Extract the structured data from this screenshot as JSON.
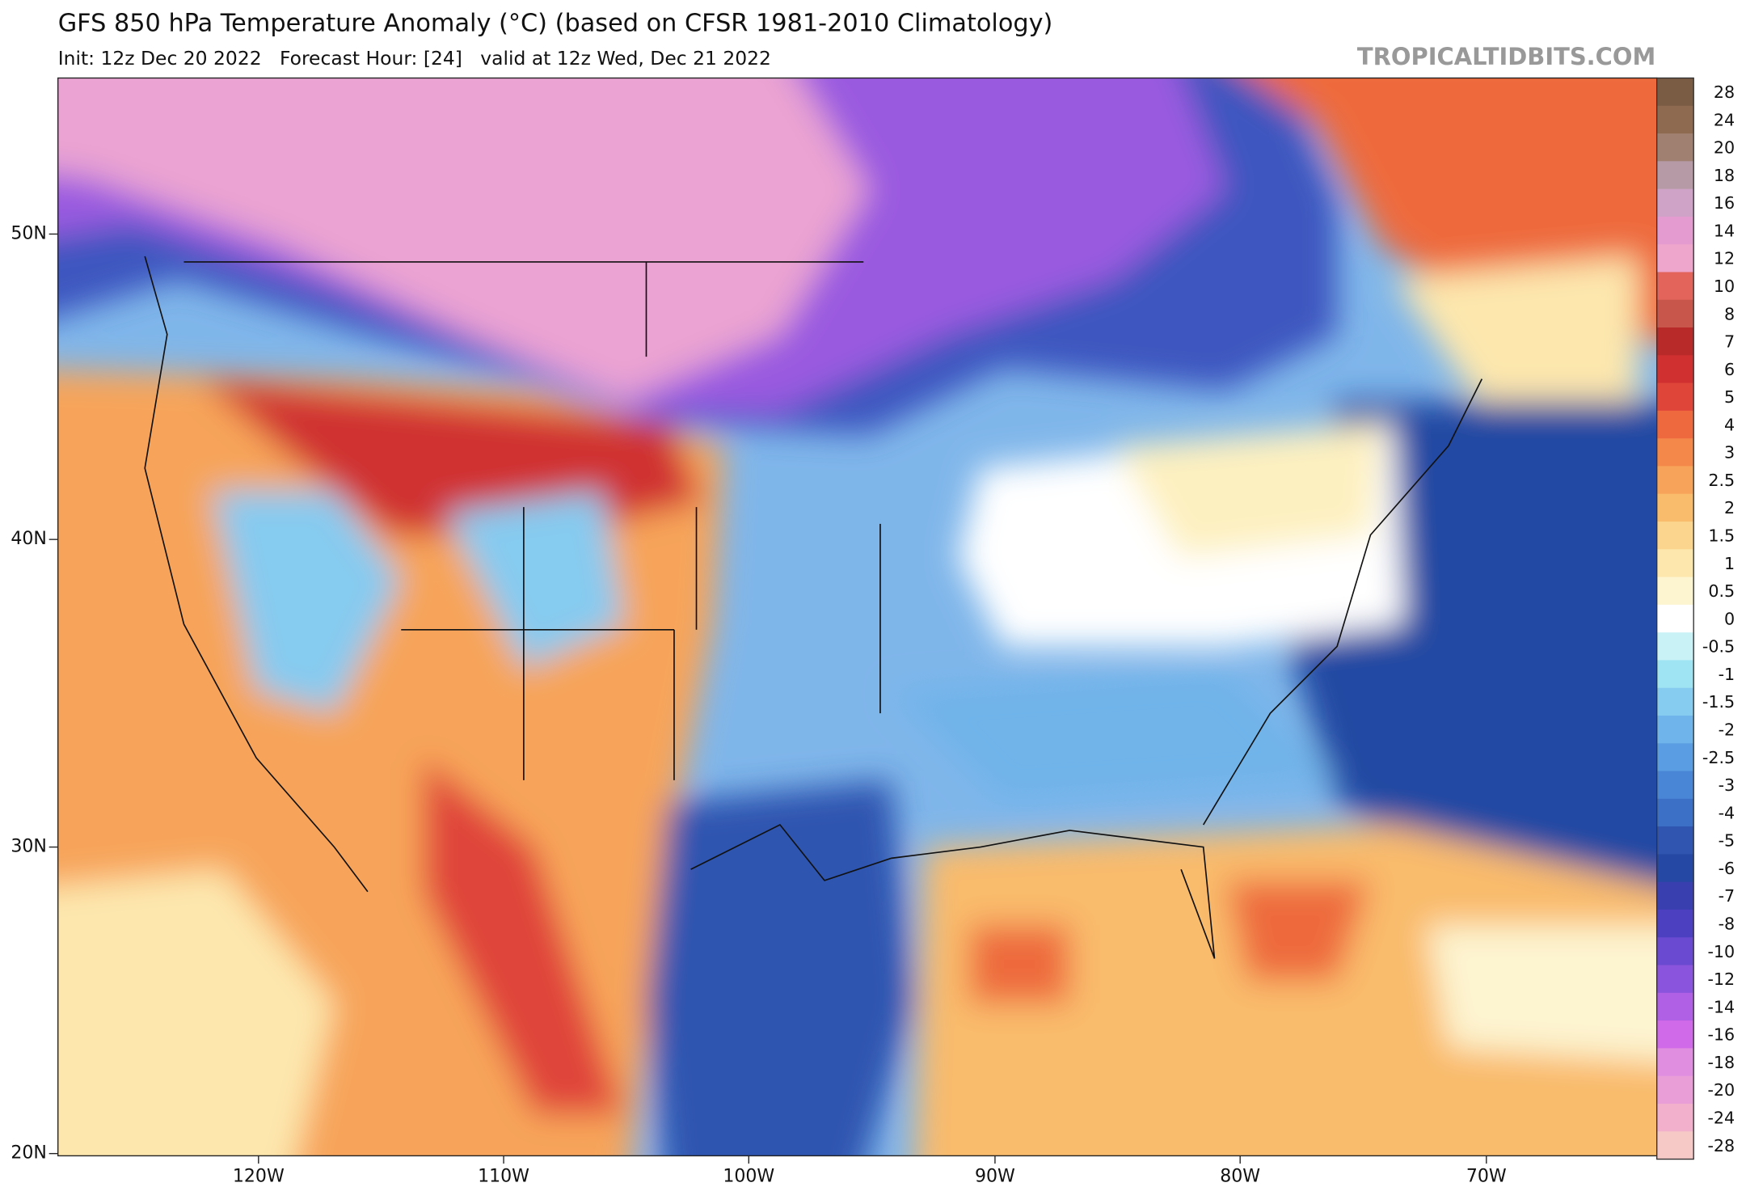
{
  "header": {
    "title": "GFS 850 hPa Temperature Anomaly (°C) (based on CFSR 1981-2010 Climatology)",
    "subtitle": "Init: 12z Dec 20 2022   Forecast Hour: [24]   valid at 12z Wed, Dec 21 2022",
    "watermark": "TROPICALTIDBITS.COM"
  },
  "map": {
    "lat_labels": [
      "50N",
      "40N",
      "30N",
      "20N"
    ],
    "lon_labels": [
      "120W",
      "110W",
      "100W",
      "90W",
      "80W",
      "70W"
    ]
  },
  "colorbar": [
    {
      "label": 28,
      "color": "#7a5c44"
    },
    {
      "label": 24,
      "color": "#8d6a50"
    },
    {
      "label": 20,
      "color": "#a08070"
    },
    {
      "label": 18,
      "color": "#b69aa6"
    },
    {
      "label": 16,
      "color": "#cfa3c7"
    },
    {
      "label": 14,
      "color": "#e39bd0"
    },
    {
      "label": 12,
      "color": "#eea6cc"
    },
    {
      "label": 10,
      "color": "#e2645a"
    },
    {
      "label": 8,
      "color": "#c9564a"
    },
    {
      "label": 7,
      "color": "#b82a2a"
    },
    {
      "label": 6,
      "color": "#d03030"
    },
    {
      "label": 5,
      "color": "#e0453a"
    },
    {
      "label": 4,
      "color": "#ee6a3e"
    },
    {
      "label": 3,
      "color": "#f4884a"
    },
    {
      "label": 2.5,
      "color": "#f7a45a"
    },
    {
      "label": 2,
      "color": "#f9bb6c"
    },
    {
      "label": 1.5,
      "color": "#fbd58d"
    },
    {
      "label": 1,
      "color": "#fde7ad"
    },
    {
      "label": 0.5,
      "color": "#fdf4d0"
    },
    {
      "label": 0,
      "color": "#ffffff"
    },
    {
      "label": -0.5,
      "color": "#c9f2f6"
    },
    {
      "label": -1,
      "color": "#9fe4f2"
    },
    {
      "label": -1.5,
      "color": "#86cbf0"
    },
    {
      "label": -2,
      "color": "#6fb4ea"
    },
    {
      "label": -2.5,
      "color": "#5a9de2"
    },
    {
      "label": -3,
      "color": "#4a86d6"
    },
    {
      "label": -4,
      "color": "#3c6fc6"
    },
    {
      "label": -5,
      "color": "#2f55b0"
    },
    {
      "label": -6,
      "color": "#2448a3"
    },
    {
      "label": -7,
      "color": "#3a3fb0"
    },
    {
      "label": -8,
      "color": "#4c3fc0"
    },
    {
      "label": -10,
      "color": "#6a4ad0"
    },
    {
      "label": -12,
      "color": "#8a55dc"
    },
    {
      "label": -14,
      "color": "#b060e4"
    },
    {
      "label": -16,
      "color": "#d06ae8"
    },
    {
      "label": -18,
      "color": "#e08fe0"
    },
    {
      "label": -20,
      "color": "#ea9ed8"
    },
    {
      "label": -24,
      "color": "#f2b0cc"
    },
    {
      "label": -28,
      "color": "#f6c8c6"
    }
  ]
}
